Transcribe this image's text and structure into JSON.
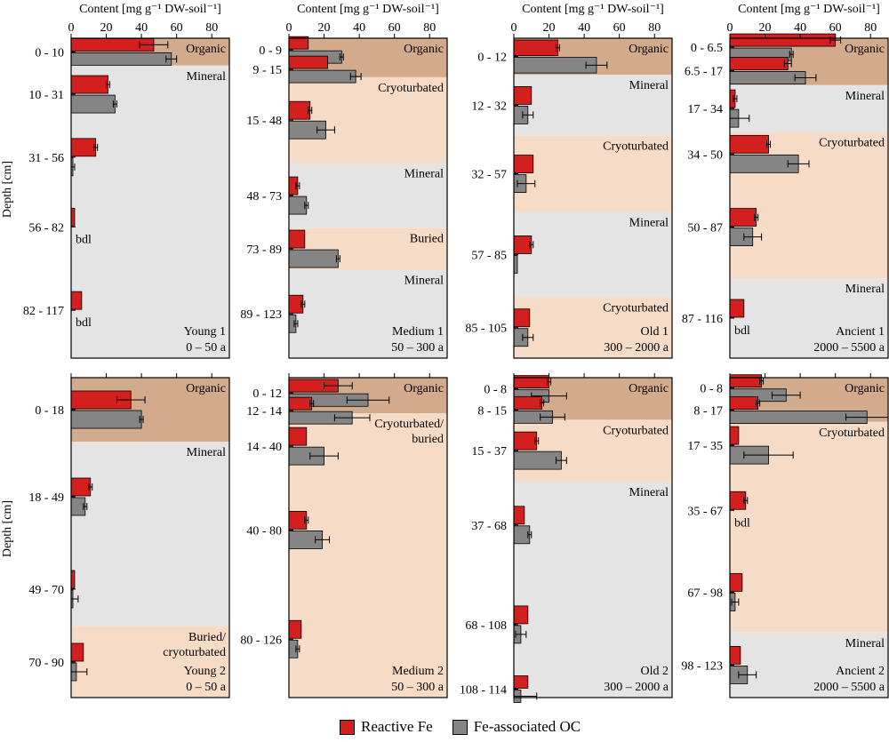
{
  "colors": {
    "organic": "#d2aa8c",
    "cryoturbated": "#f6dcc7",
    "mineral": "#e4e4e4",
    "reactive_fe": "#d41f1f",
    "fe_oc": "#858585",
    "frame": "#000000"
  },
  "axis": {
    "xlabel": "Content [mg g⁻¹ DW-soil⁻¹]",
    "ticks": [
      "0",
      "20",
      "40",
      "60",
      "80"
    ],
    "ylabel": "Depth [cm]",
    "xlim": [
      0,
      90
    ]
  },
  "legend": {
    "reactive_fe": "Reactive Fe",
    "fe_oc": "Fe-associated OC"
  },
  "chart_data": {
    "type": "bar",
    "orientation": "horizontal",
    "series_names": [
      "Reactive Fe",
      "Fe-associated OC"
    ],
    "panels": [
      {
        "id": "young1",
        "name": "Young 1",
        "age": "0 – 50 a",
        "depth_max": 117,
        "horizons": [
          {
            "type": "organic",
            "label": "Organic",
            "from": 0,
            "to": 10
          },
          {
            "type": "mineral",
            "label": "Mineral",
            "from": 10,
            "to": 117
          }
        ],
        "layers": [
          {
            "depth": "0 - 10",
            "from": 0,
            "to": 10,
            "fe": 47,
            "fe_err": 8,
            "oc": 57,
            "oc_err": 3
          },
          {
            "depth": "10 - 31",
            "from": 10,
            "to": 31,
            "fe": 21,
            "fe_err": 1,
            "oc": 25,
            "oc_err": 1
          },
          {
            "depth": "31 - 56",
            "from": 31,
            "to": 56,
            "fe": 14,
            "fe_err": 1,
            "oc": 1,
            "oc_err": 1
          },
          {
            "depth": "56 - 82",
            "from": 56,
            "to": 82,
            "fe": 2,
            "fe_err": 0,
            "oc": null,
            "oc_label": "bdl"
          },
          {
            "depth": "82 - 117",
            "from": 82,
            "to": 117,
            "fe": 6,
            "fe_err": 0,
            "oc": null,
            "oc_label": "bdl"
          }
        ]
      },
      {
        "id": "medium1",
        "name": "Medium 1",
        "age": "50 – 300 a",
        "depth_max": 123,
        "horizons": [
          {
            "type": "organic",
            "label": "Organic",
            "from": 0,
            "to": 15
          },
          {
            "type": "cryoturbated",
            "label": "Cryoturbated",
            "from": 15,
            "to": 48
          },
          {
            "type": "mineral",
            "label": "Mineral",
            "from": 48,
            "to": 73
          },
          {
            "type": "cryoturbated",
            "label": "Buried",
            "from": 73,
            "to": 89
          },
          {
            "type": "mineral",
            "label": "Mineral",
            "from": 89,
            "to": 123
          }
        ],
        "layers": [
          {
            "depth": "0 - 9",
            "from": 0,
            "to": 9,
            "fe": 11,
            "fe_err": 0,
            "oc": 30,
            "oc_err": 1
          },
          {
            "depth": "9 - 15",
            "from": 9,
            "to": 15,
            "fe": 22,
            "fe_err": 0,
            "oc": 38,
            "oc_err": 3
          },
          {
            "depth": "15 - 48",
            "from": 15,
            "to": 48,
            "fe": 12,
            "fe_err": 1,
            "oc": 21,
            "oc_err": 5
          },
          {
            "depth": "48 - 73",
            "from": 48,
            "to": 73,
            "fe": 5,
            "fe_err": 1,
            "oc": 10,
            "oc_err": 1
          },
          {
            "depth": "73 - 89",
            "from": 73,
            "to": 89,
            "fe": 9,
            "fe_err": 0,
            "oc": 28,
            "oc_err": 1
          },
          {
            "depth": "89 - 123",
            "from": 89,
            "to": 123,
            "fe": 8,
            "fe_err": 1,
            "oc": 4,
            "oc_err": 1
          }
        ]
      },
      {
        "id": "old1",
        "name": "Old 1",
        "age": "300 – 2000 a",
        "depth_max": 105,
        "horizons": [
          {
            "type": "organic",
            "label": "Organic",
            "from": 0,
            "to": 12
          },
          {
            "type": "mineral",
            "label": "Mineral",
            "from": 12,
            "to": 32
          },
          {
            "type": "cryoturbated",
            "label": "Cryoturbated",
            "from": 32,
            "to": 57
          },
          {
            "type": "mineral",
            "label": "Mineral",
            "from": 57,
            "to": 85
          },
          {
            "type": "cryoturbated",
            "label": "Cryoturbated",
            "from": 85,
            "to": 105
          }
        ],
        "layers": [
          {
            "depth": "0 - 12",
            "from": 0,
            "to": 12,
            "fe": 25,
            "fe_err": 1,
            "oc": 47,
            "oc_err": 6
          },
          {
            "depth": "12 - 32",
            "from": 12,
            "to": 32,
            "fe": 10,
            "fe_err": 0,
            "oc": 8,
            "oc_err": 3
          },
          {
            "depth": "32 - 57",
            "from": 32,
            "to": 57,
            "fe": 11,
            "fe_err": 0,
            "oc": 7,
            "oc_err": 5
          },
          {
            "depth": "57 - 85",
            "from": 57,
            "to": 85,
            "fe": 10,
            "fe_err": 1,
            "oc": 2,
            "oc_err": 0
          },
          {
            "depth": "85 - 105",
            "from": 85,
            "to": 105,
            "fe": 9,
            "fe_err": 0,
            "oc": 8,
            "oc_err": 3
          }
        ]
      },
      {
        "id": "ancient1",
        "name": "Ancient 1",
        "age": "2000 – 5500 a",
        "depth_max": 116,
        "horizons": [
          {
            "type": "organic",
            "label": "Organic",
            "from": 0,
            "to": 17
          },
          {
            "type": "mineral",
            "label": "Mineral",
            "from": 17,
            "to": 34
          },
          {
            "type": "cryoturbated",
            "label": "Cryoturbated",
            "from": 34,
            "to": 87
          },
          {
            "type": "mineral",
            "label": "Mineral",
            "from": 87,
            "to": 116
          }
        ],
        "layers": [
          {
            "depth": "0 - 6.5",
            "from": 0,
            "to": 6.5,
            "fe": 60,
            "fe_err": 3,
            "oc": 35,
            "oc_err": 1
          },
          {
            "depth": "6.5 - 17",
            "from": 6.5,
            "to": 17,
            "fe": 33,
            "fe_err": 2,
            "oc": 43,
            "oc_err": 6
          },
          {
            "depth": "17 - 34",
            "from": 17,
            "to": 34,
            "fe": 3,
            "fe_err": 1,
            "oc": 5,
            "oc_err": 6
          },
          {
            "depth": "34 - 50",
            "from": 34,
            "to": 50,
            "fe": 22,
            "fe_err": 1,
            "oc": 39,
            "oc_err": 6
          },
          {
            "depth": "50 - 87",
            "from": 50,
            "to": 87,
            "fe": 15,
            "fe_err": 1,
            "oc": 13,
            "oc_err": 5
          },
          {
            "depth": "87 - 116",
            "from": 87,
            "to": 116,
            "fe": 8,
            "fe_err": 0,
            "oc": null,
            "oc_label": "bdl"
          }
        ]
      },
      {
        "id": "young2",
        "name": "Young 2",
        "age": "0 – 50 a",
        "depth_max": 90,
        "horizons": [
          {
            "type": "organic",
            "label": "Organic",
            "from": 0,
            "to": 18
          },
          {
            "type": "mineral",
            "label": "Mineral",
            "from": 18,
            "to": 70
          },
          {
            "type": "cryoturbated",
            "label": "Buried/\ncryoturbated",
            "from": 70,
            "to": 90
          }
        ],
        "layers": [
          {
            "depth": "0 - 18",
            "from": 0,
            "to": 18,
            "fe": 34,
            "fe_err": 8,
            "oc": 40,
            "oc_err": 1
          },
          {
            "depth": "18 - 49",
            "from": 18,
            "to": 49,
            "fe": 11,
            "fe_err": 1,
            "oc": 8,
            "oc_err": 1
          },
          {
            "depth": "49 - 70",
            "from": 49,
            "to": 70,
            "fe": 2,
            "fe_err": 0,
            "oc": 1,
            "oc_err": 3
          },
          {
            "depth": "70 - 90",
            "from": 70,
            "to": 90,
            "fe": 7,
            "fe_err": 0,
            "oc": 3,
            "oc_err": 6
          }
        ]
      },
      {
        "id": "medium2",
        "name": "Medium 2",
        "age": "50 – 300 a",
        "depth_max": 126,
        "horizons": [
          {
            "type": "organic",
            "label": "Organic",
            "from": 0,
            "to": 14
          },
          {
            "type": "cryoturbated",
            "label": "Cryoturbated/\nburied",
            "from": 14,
            "to": 126
          }
        ],
        "layers": [
          {
            "depth": "0 - 12",
            "from": 0,
            "to": 12,
            "fe": 28,
            "fe_err": 8,
            "oc": 45,
            "oc_err": 12
          },
          {
            "depth": "12 - 14",
            "from": 12,
            "to": 14,
            "fe": 13,
            "fe_err": 1,
            "oc": 36,
            "oc_err": 10
          },
          {
            "depth": "14 - 40",
            "from": 14,
            "to": 40,
            "fe": 10,
            "fe_err": 0,
            "oc": 20,
            "oc_err": 8
          },
          {
            "depth": "40 - 80",
            "from": 40,
            "to": 80,
            "fe": 10,
            "fe_err": 1,
            "oc": 19,
            "oc_err": 4
          },
          {
            "depth": "80 - 126",
            "from": 80,
            "to": 126,
            "fe": 7,
            "fe_err": 0,
            "oc": 5,
            "oc_err": 1
          }
        ]
      },
      {
        "id": "old2",
        "name": "Old 2",
        "age": "300 – 2000 a",
        "depth_max": 114,
        "horizons": [
          {
            "type": "organic",
            "label": "Organic",
            "from": 0,
            "to": 15
          },
          {
            "type": "cryoturbated",
            "label": "Cryoturbated",
            "from": 15,
            "to": 37
          },
          {
            "type": "mineral",
            "label": "Mineral",
            "from": 37,
            "to": 114
          }
        ],
        "layers": [
          {
            "depth": "0 - 8",
            "from": 0,
            "to": 8,
            "fe": 20,
            "fe_err": 1,
            "oc": 20,
            "oc_err": 10
          },
          {
            "depth": "8 - 15",
            "from": 8,
            "to": 15,
            "fe": 16,
            "fe_err": 1,
            "oc": 22,
            "oc_err": 7
          },
          {
            "depth": "15 - 37",
            "from": 15,
            "to": 37,
            "fe": 13,
            "fe_err": 1,
            "oc": 27,
            "oc_err": 3
          },
          {
            "depth": "37 - 68",
            "from": 37,
            "to": 68,
            "fe": 6,
            "fe_err": 0,
            "oc": 9,
            "oc_err": 1
          },
          {
            "depth": "68 - 108",
            "from": 68,
            "to": 108,
            "fe": 8,
            "fe_err": 0,
            "oc": 4,
            "oc_err": 3
          },
          {
            "depth": "108 - 114",
            "from": 108,
            "to": 114,
            "fe": 8,
            "fe_err": 0,
            "oc": 4,
            "oc_err": 9
          }
        ]
      },
      {
        "id": "ancient2",
        "name": "Ancient 2",
        "age": "2000 – 5500 a",
        "depth_max": 123,
        "horizons": [
          {
            "type": "organic",
            "label": "Organic",
            "from": 0,
            "to": 17
          },
          {
            "type": "cryoturbated",
            "label": "Cryoturbated",
            "from": 17,
            "to": 98
          },
          {
            "type": "mineral",
            "label": "Mineral",
            "from": 98,
            "to": 123
          }
        ],
        "layers": [
          {
            "depth": "0 - 8",
            "from": 0,
            "to": 8,
            "fe": 18,
            "fe_err": 1,
            "oc": 32,
            "oc_err": 8
          },
          {
            "depth": "8 - 17",
            "from": 8,
            "to": 17,
            "fe": 16,
            "fe_err": 1,
            "oc": 78,
            "oc_err": 12
          },
          {
            "depth": "17 - 35",
            "from": 17,
            "to": 35,
            "fe": 5,
            "fe_err": 0,
            "oc": 22,
            "oc_err": 14
          },
          {
            "depth": "35 - 67",
            "from": 35,
            "to": 67,
            "fe": 9,
            "fe_err": 1,
            "oc": null,
            "oc_label": "bdl"
          },
          {
            "depth": "67 - 98",
            "from": 67,
            "to": 98,
            "fe": 7,
            "fe_err": 0,
            "oc": 3,
            "oc_err": 2
          },
          {
            "depth": "98 - 123",
            "from": 98,
            "to": 123,
            "fe": 6,
            "fe_err": 0,
            "oc": 10,
            "oc_err": 5
          }
        ]
      }
    ]
  }
}
